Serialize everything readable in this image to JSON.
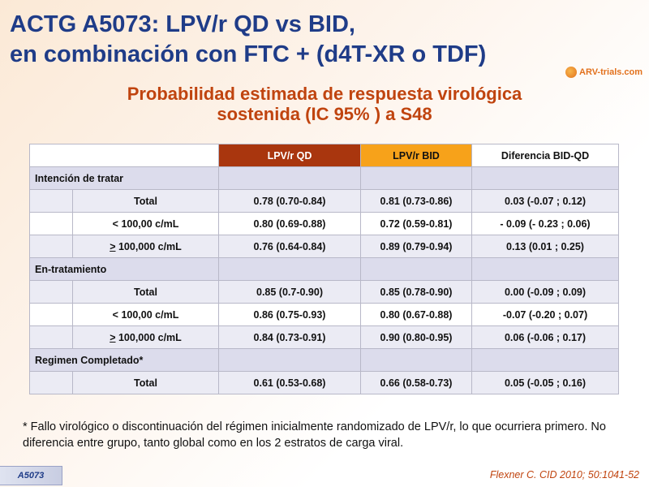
{
  "title": {
    "line1": "ACTG A5073: LPV/r QD vs BID,",
    "line2": "en combinación con FTC + (d4T-XR o TDF)"
  },
  "logo": {
    "text": "ARV-trials.com"
  },
  "subtitle": {
    "line1": "Probabilidad estimada de respuesta virológica",
    "line2": "sostenida (IC 95% ) a S48"
  },
  "table": {
    "headers": [
      "LPV/r QD",
      "LPV/r BID",
      "Diferencia BID-QD"
    ],
    "groups": [
      {
        "label": "Intención de tratar",
        "rows": [
          {
            "prefix": "",
            "label": "Total",
            "qd": "0.78 (0.70-0.84)",
            "bid": "0.81 (0.73-0.86)",
            "diff": "0.03 (-0.07 ; 0.12)"
          },
          {
            "prefix": "",
            "label": "< 100,00 c/mL",
            "qd": "0.80 (0.69-0.88)",
            "bid": "0.72 (0.59-0.81)",
            "diff": "- 0.09 (- 0.23 ; 0.06)"
          },
          {
            "prefix": ">",
            "label": " 100,000 c/mL",
            "qd": "0.76 (0.64-0.84)",
            "bid": "0.89 (0.79-0.94)",
            "diff": "0.13 (0.01 ; 0.25)"
          }
        ]
      },
      {
        "label": "En-tratamiento",
        "rows": [
          {
            "prefix": "",
            "label": "Total",
            "qd": "0.85 (0.7-0.90)",
            "bid": "0.85 (0.78-0.90)",
            "diff": "0.00 (-0.09 ; 0.09)"
          },
          {
            "prefix": "",
            "label": "< 100,00 c/mL",
            "qd": "0.86 (0.75-0.93)",
            "bid": "0.80 (0.67-0.88)",
            "diff": "-0.07 (-0.20 ; 0.07)"
          },
          {
            "prefix": ">",
            "label": " 100,000 c/mL",
            "qd": "0.84 (0.73-0.91)",
            "bid": "0.90 (0.80-0.95)",
            "diff": "0.06 (-0.06 ; 0.17)"
          }
        ]
      },
      {
        "label": "Regimen Completado*",
        "rows": [
          {
            "prefix": "",
            "label": "Total",
            "qd": "0.61 (0.53-0.68)",
            "bid": "0.66 (0.58-0.73)",
            "diff": "0.05 (-0.05 ; 0.16)"
          }
        ]
      }
    ]
  },
  "footnote": "* Fallo virológico o discontinuación del régimen inicialmente randomizado de LPV/r, lo que ocurriera primero. No diferencia entre grupo, tanto global como en los 2 estratos de carga viral.",
  "badge": "A5073",
  "citation": "Flexner C. CID 2010; 50:1041-52",
  "colors": {
    "title": "#1f3c88",
    "subtitle": "#c0440f",
    "header_qd": "#a9360e",
    "header_bid": "#f7a21a"
  }
}
